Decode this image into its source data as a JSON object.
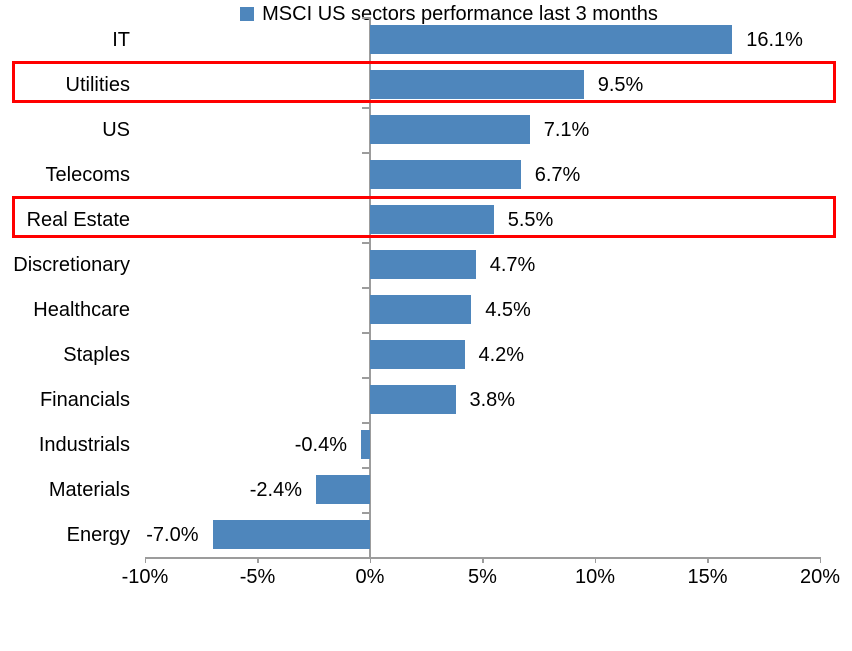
{
  "chart_data": {
    "type": "bar",
    "orientation": "horizontal",
    "title": "",
    "categories": [
      "IT",
      "Utilities",
      "US",
      "Telecoms",
      "Real Estate",
      "Discretionary",
      "Healthcare",
      "Staples",
      "Financials",
      "Industrials",
      "Materials",
      "Energy"
    ],
    "values": [
      16.1,
      9.5,
      7.1,
      6.7,
      5.5,
      4.7,
      4.5,
      4.2,
      3.8,
      -0.4,
      -2.4,
      -7.0
    ],
    "data_labels": [
      "16.1%",
      "9.5%",
      "7.1%",
      "6.7%",
      "5.5%",
      "4.7%",
      "4.5%",
      "4.2%",
      "3.8%",
      "-0.4%",
      "-2.4%",
      "-7.0%"
    ],
    "highlighted_categories": [
      "Utilities",
      "Real Estate"
    ],
    "x_ticks": [
      -10,
      -5,
      0,
      5,
      10,
      15,
      20
    ],
    "x_tick_labels": [
      "-10%",
      "-5%",
      "0%",
      "5%",
      "10%",
      "15%",
      "20%"
    ],
    "xlim": [
      -10,
      20
    ],
    "grid": false,
    "legend": "MSCI US sectors performance last 3 months",
    "legend_position": "bottom",
    "bar_color": "#4E86BC",
    "highlight_color": "#FF0000",
    "axis_color": "#9C9C9C",
    "text_color": "#000000"
  }
}
